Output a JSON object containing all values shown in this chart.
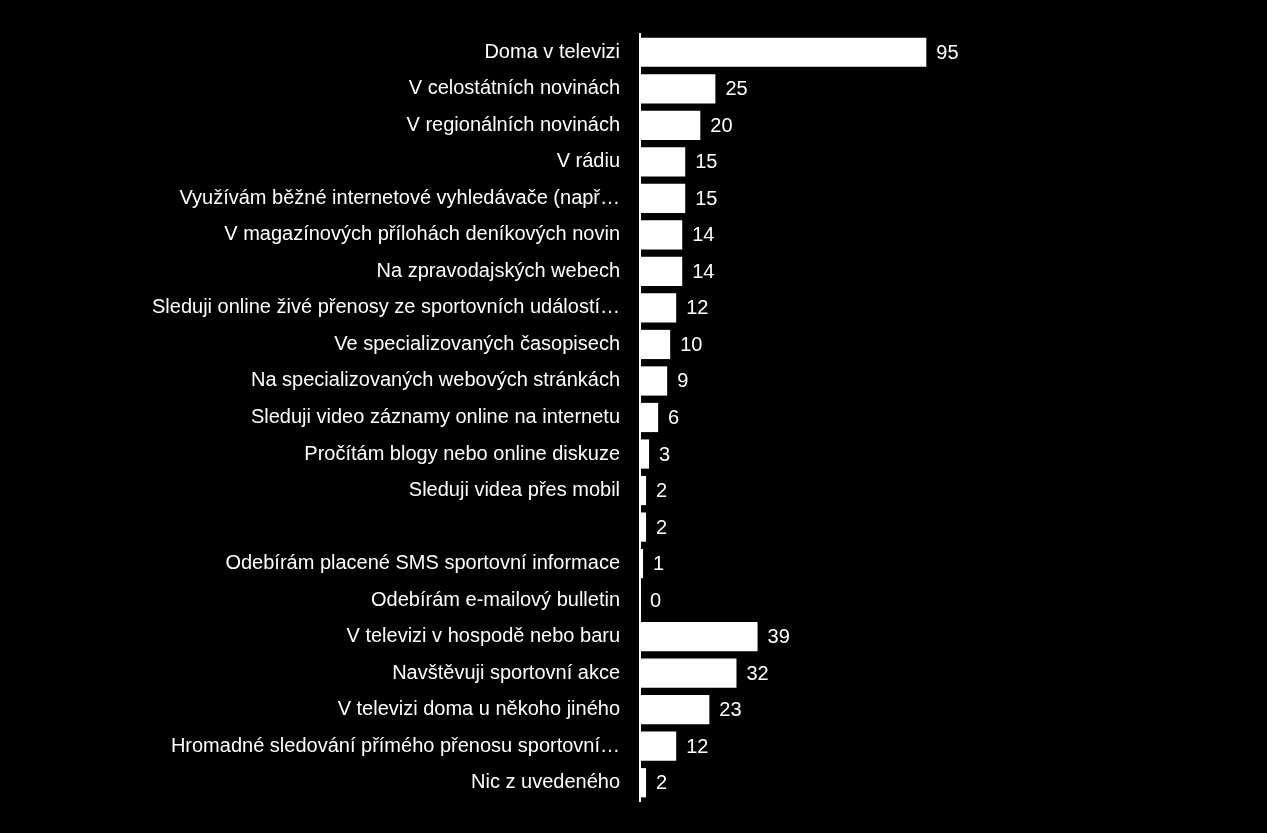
{
  "chart_data": {
    "type": "bar",
    "orientation": "horizontal",
    "categories": [
      "Doma v televizi",
      "V celostátních novinách",
      "V regionálních novinách",
      "V rádiu",
      "Využívám běžné internetové vyhledávače (např…",
      "V magazínových přílohách deníkových novin",
      "Na zpravodajských webech",
      "Sleduji online živé přenosy ze sportovních událostí…",
      "Ve specializovaných časopisech",
      "Na specializovaných webových stránkách",
      "Sleduji video záznamy online na internetu",
      "Pročítám blogy nebo online diskuze",
      "Sleduji videa přes mobil",
      null,
      "Odebírám placené SMS sportovní informace",
      "Odebírám e-mailový bulletin",
      "V televizi v hospodě nebo baru",
      "Navštěvuji sportovní akce",
      "V televizi doma u někoho jiného",
      "Hromadné sledování přímého přenosu sportovní…",
      "Nic z uvedeného"
    ],
    "values": [
      95,
      25,
      20,
      15,
      15,
      14,
      14,
      12,
      10,
      9,
      6,
      3,
      2,
      2,
      1,
      0,
      39,
      32,
      23,
      12,
      2
    ],
    "color": "#ffffff",
    "data_labels": true,
    "legend": false
  }
}
